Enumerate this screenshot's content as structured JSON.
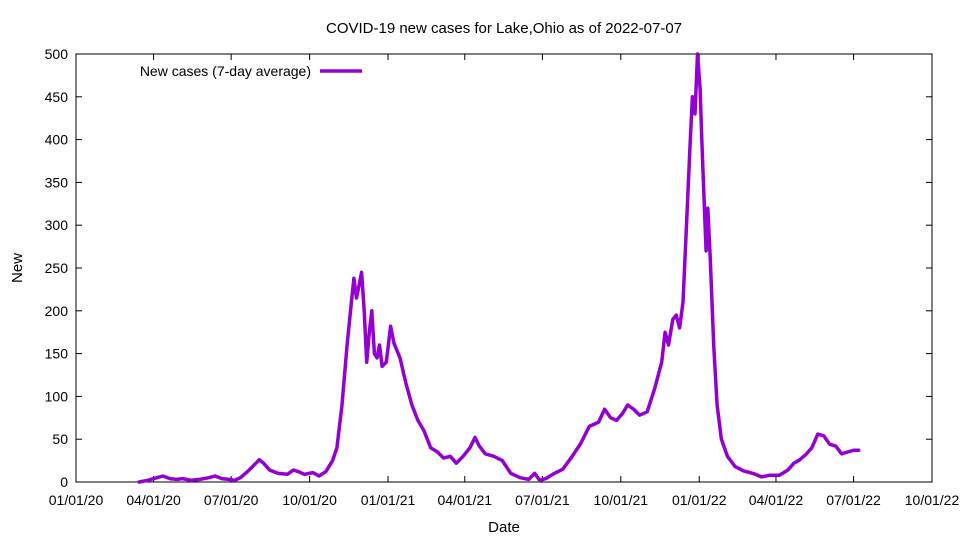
{
  "chart_data": {
    "type": "line",
    "title": "COVID-19 new cases for Lake,Ohio as of 2022-07-07",
    "xlabel": "Date",
    "ylabel": "New",
    "x_scale": "date",
    "xlim": [
      "2020-01-01",
      "2022-10-01"
    ],
    "ylim": [
      0,
      500
    ],
    "x_ticks": [
      {
        "date": "2020-01-01",
        "label": "01/01/20"
      },
      {
        "date": "2020-04-01",
        "label": "04/01/20"
      },
      {
        "date": "2020-07-01",
        "label": "07/01/20"
      },
      {
        "date": "2020-10-01",
        "label": "10/01/20"
      },
      {
        "date": "2021-01-01",
        "label": "01/01/21"
      },
      {
        "date": "2021-04-01",
        "label": "04/01/21"
      },
      {
        "date": "2021-07-01",
        "label": "07/01/21"
      },
      {
        "date": "2021-10-01",
        "label": "10/01/21"
      },
      {
        "date": "2022-01-01",
        "label": "01/01/22"
      },
      {
        "date": "2022-04-01",
        "label": "04/01/22"
      },
      {
        "date": "2022-07-01",
        "label": "07/01/22"
      },
      {
        "date": "2022-10-01",
        "label": "10/01/22"
      }
    ],
    "y_ticks": [
      0,
      50,
      100,
      150,
      200,
      250,
      300,
      350,
      400,
      450,
      500
    ],
    "grid": false,
    "legend_position": "top-left",
    "series": [
      {
        "name": "New cases (7-day average)",
        "color": "#9400d3",
        "points": [
          [
            "2020-03-15",
            0
          ],
          [
            "2020-03-25",
            2
          ],
          [
            "2020-04-05",
            5
          ],
          [
            "2020-04-12",
            7
          ],
          [
            "2020-04-20",
            4
          ],
          [
            "2020-04-28",
            3
          ],
          [
            "2020-05-05",
            4
          ],
          [
            "2020-05-15",
            2
          ],
          [
            "2020-05-25",
            3
          ],
          [
            "2020-06-05",
            5
          ],
          [
            "2020-06-12",
            7
          ],
          [
            "2020-06-20",
            4
          ],
          [
            "2020-06-28",
            3
          ],
          [
            "2020-07-05",
            2
          ],
          [
            "2020-07-12",
            5
          ],
          [
            "2020-07-20",
            12
          ],
          [
            "2020-07-28",
            20
          ],
          [
            "2020-08-03",
            26
          ],
          [
            "2020-08-08",
            22
          ],
          [
            "2020-08-15",
            14
          ],
          [
            "2020-08-25",
            10
          ],
          [
            "2020-09-05",
            9
          ],
          [
            "2020-09-12",
            14
          ],
          [
            "2020-09-18",
            12
          ],
          [
            "2020-09-25",
            9
          ],
          [
            "2020-10-05",
            11
          ],
          [
            "2020-10-12",
            7
          ],
          [
            "2020-10-20",
            12
          ],
          [
            "2020-10-28",
            25
          ],
          [
            "2020-11-02",
            40
          ],
          [
            "2020-11-08",
            90
          ],
          [
            "2020-11-14",
            160
          ],
          [
            "2020-11-19",
            210
          ],
          [
            "2020-11-22",
            238
          ],
          [
            "2020-11-25",
            215
          ],
          [
            "2020-11-28",
            230
          ],
          [
            "2020-12-01",
            245
          ],
          [
            "2020-12-04",
            200
          ],
          [
            "2020-12-07",
            140
          ],
          [
            "2020-12-10",
            175
          ],
          [
            "2020-12-13",
            200
          ],
          [
            "2020-12-16",
            150
          ],
          [
            "2020-12-19",
            145
          ],
          [
            "2020-12-22",
            160
          ],
          [
            "2020-12-25",
            135
          ],
          [
            "2020-12-30",
            140
          ],
          [
            "2021-01-04",
            182
          ],
          [
            "2021-01-08",
            162
          ],
          [
            "2021-01-15",
            145
          ],
          [
            "2021-01-22",
            115
          ],
          [
            "2021-01-29",
            90
          ],
          [
            "2021-02-05",
            72
          ],
          [
            "2021-02-12",
            60
          ],
          [
            "2021-02-20",
            40
          ],
          [
            "2021-02-28",
            35
          ],
          [
            "2021-03-07",
            28
          ],
          [
            "2021-03-15",
            30
          ],
          [
            "2021-03-22",
            22
          ],
          [
            "2021-03-30",
            30
          ],
          [
            "2021-04-07",
            40
          ],
          [
            "2021-04-13",
            52
          ],
          [
            "2021-04-18",
            42
          ],
          [
            "2021-04-25",
            33
          ],
          [
            "2021-05-05",
            30
          ],
          [
            "2021-05-15",
            25
          ],
          [
            "2021-05-25",
            10
          ],
          [
            "2021-06-05",
            5
          ],
          [
            "2021-06-15",
            3
          ],
          [
            "2021-06-22",
            10
          ],
          [
            "2021-06-28",
            2
          ],
          [
            "2021-07-05",
            4
          ],
          [
            "2021-07-15",
            10
          ],
          [
            "2021-07-25",
            15
          ],
          [
            "2021-08-05",
            30
          ],
          [
            "2021-08-15",
            45
          ],
          [
            "2021-08-25",
            65
          ],
          [
            "2021-09-05",
            70
          ],
          [
            "2021-09-12",
            85
          ],
          [
            "2021-09-19",
            75
          ],
          [
            "2021-09-26",
            72
          ],
          [
            "2021-10-03",
            80
          ],
          [
            "2021-10-09",
            90
          ],
          [
            "2021-10-16",
            85
          ],
          [
            "2021-10-23",
            78
          ],
          [
            "2021-11-01",
            82
          ],
          [
            "2021-11-10",
            110
          ],
          [
            "2021-11-18",
            140
          ],
          [
            "2021-11-22",
            175
          ],
          [
            "2021-11-26",
            160
          ],
          [
            "2021-12-01",
            190
          ],
          [
            "2021-12-05",
            195
          ],
          [
            "2021-12-09",
            180
          ],
          [
            "2021-12-13",
            210
          ],
          [
            "2021-12-17",
            300
          ],
          [
            "2021-12-21",
            390
          ],
          [
            "2021-12-24",
            450
          ],
          [
            "2021-12-27",
            430
          ],
          [
            "2021-12-30",
            500
          ],
          [
            "2022-01-02",
            460
          ],
          [
            "2022-01-04",
            400
          ],
          [
            "2022-01-07",
            320
          ],
          [
            "2022-01-09",
            270
          ],
          [
            "2022-01-11",
            320
          ],
          [
            "2022-01-14",
            260
          ],
          [
            "2022-01-18",
            160
          ],
          [
            "2022-01-22",
            90
          ],
          [
            "2022-01-27",
            50
          ],
          [
            "2022-02-03",
            30
          ],
          [
            "2022-02-12",
            18
          ],
          [
            "2022-02-22",
            13
          ],
          [
            "2022-03-05",
            10
          ],
          [
            "2022-03-15",
            6
          ],
          [
            "2022-03-25",
            8
          ],
          [
            "2022-04-05",
            8
          ],
          [
            "2022-04-15",
            14
          ],
          [
            "2022-04-22",
            22
          ],
          [
            "2022-04-29",
            26
          ],
          [
            "2022-05-06",
            32
          ],
          [
            "2022-05-13",
            40
          ],
          [
            "2022-05-20",
            56
          ],
          [
            "2022-05-27",
            54
          ],
          [
            "2022-06-03",
            44
          ],
          [
            "2022-06-10",
            42
          ],
          [
            "2022-06-17",
            33
          ],
          [
            "2022-06-24",
            35
          ],
          [
            "2022-07-01",
            37
          ],
          [
            "2022-07-07",
            37
          ]
        ]
      }
    ]
  }
}
